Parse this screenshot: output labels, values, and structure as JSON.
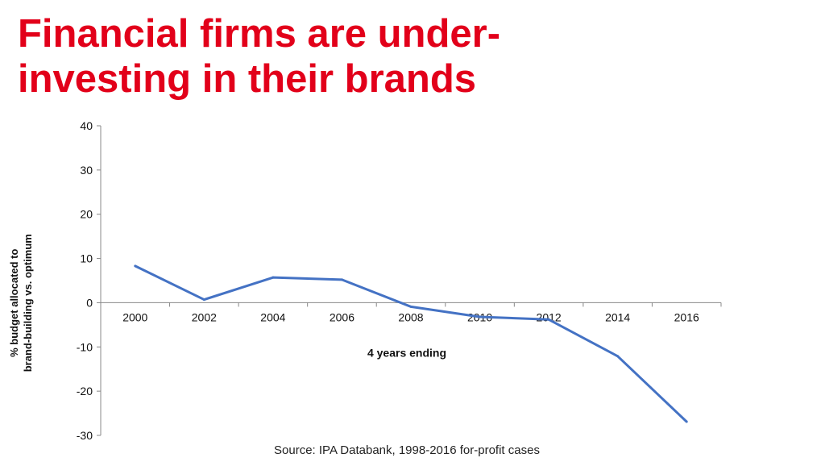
{
  "title_lines": [
    "Financial firms are under-",
    "investing in their brands"
  ],
  "source": "Source: IPA Databank, 1998-2016 for-profit cases",
  "chart_data": {
    "type": "line",
    "title": "Financial firms are under-investing in their brands",
    "xlabel": "4 years ending",
    "ylabel_lines": [
      "% budget allocated to",
      "brand-building vs. optimum"
    ],
    "categories": [
      "2000",
      "2002",
      "2004",
      "2006",
      "2008",
      "2010",
      "2012",
      "2014",
      "2016"
    ],
    "series": [
      {
        "name": "Financial firms",
        "color": "#4472c4",
        "values": [
          8.3,
          0.7,
          5.7,
          5.2,
          -0.9,
          -3.2,
          -3.8,
          -12.1,
          -26.9
        ]
      }
    ],
    "ylim": [
      -30,
      40
    ],
    "yticks": [
      40,
      30,
      20,
      10,
      0,
      -10,
      -20,
      -30
    ],
    "grid": false,
    "legend": "none"
  }
}
